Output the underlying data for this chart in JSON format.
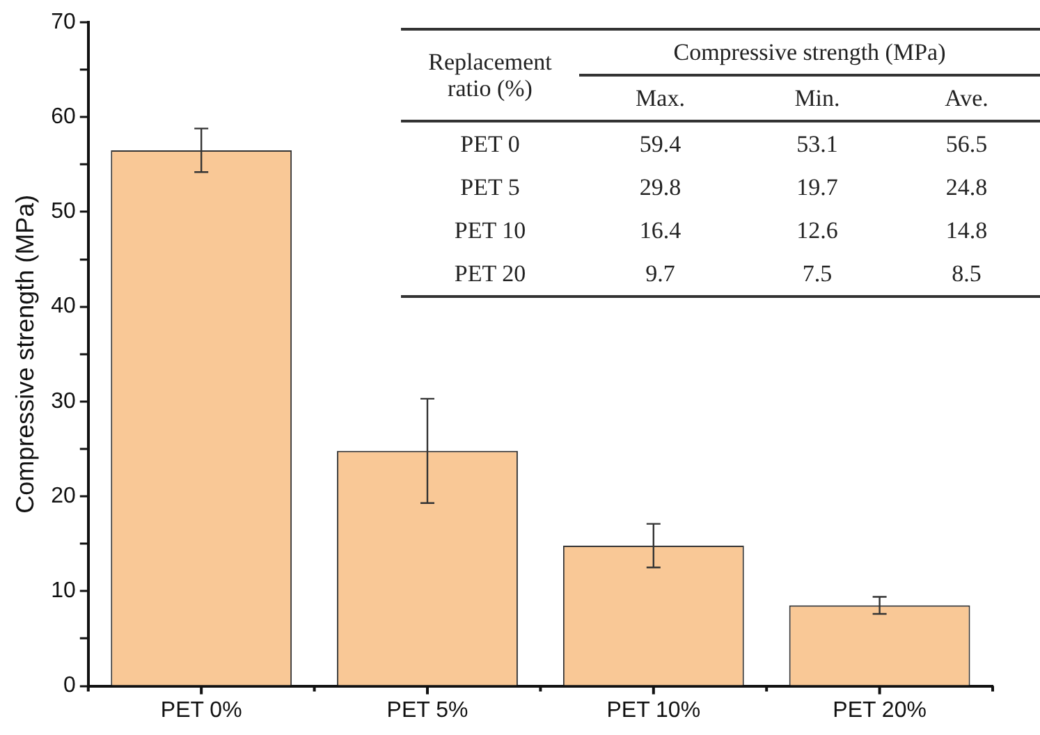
{
  "chart_data": {
    "type": "bar",
    "ylabel": "Compressive strength (MPa)",
    "categories": [
      "PET 0%",
      "PET 5%",
      "PET 10%",
      "PET 20%"
    ],
    "values": [
      56.5,
      24.8,
      14.8,
      8.5
    ],
    "errors": [
      2.3,
      5.5,
      2.3,
      0.9
    ],
    "color": "#f9c896",
    "ylim": [
      0,
      70
    ],
    "yticks": [
      0,
      {
        "value": 5,
        "label": null
      },
      10,
      {
        "value": 15,
        "label": null
      },
      20,
      {
        "value": 25,
        "label": null
      },
      30,
      {
        "value": 35,
        "label": null
      },
      40,
      {
        "value": 45,
        "label": null
      },
      50,
      {
        "value": 55,
        "label": null
      },
      60,
      {
        "value": 65,
        "label": null
      },
      70
    ],
    "grid": false,
    "legend": false,
    "annotations": [
      "Replacement ratio (%)",
      "Compressive strength (MPa)",
      "Max.",
      "Min.",
      "Ave.",
      "PET 0",
      "59.4",
      "53.1",
      "56.5",
      "PET 5",
      "29.8",
      "19.7",
      "24.8",
      "PET 10",
      "16.4",
      "12.6",
      "14.8",
      "PET 20",
      "9.7",
      "7.5",
      "8.5"
    ]
  }
}
